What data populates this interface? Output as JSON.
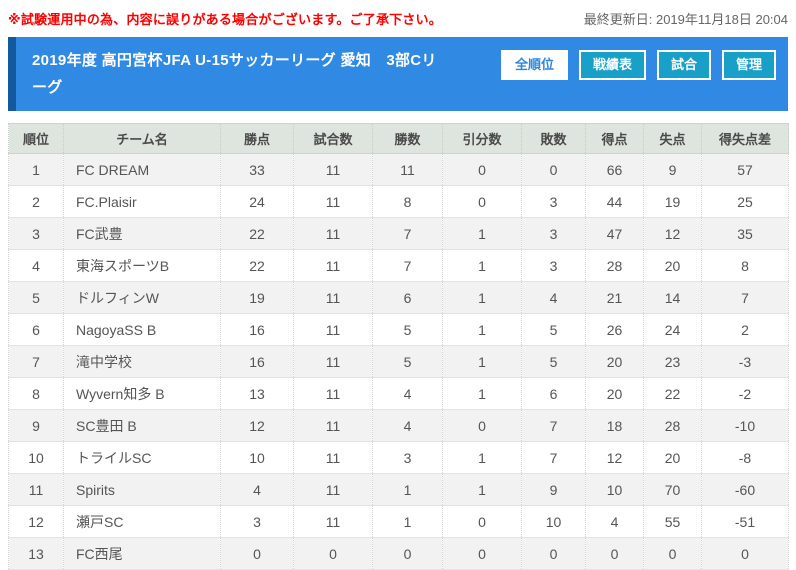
{
  "topbar": {
    "notice": "※試験運用中の為、内容に誤りがある場合がございます。ご了承下さい。",
    "last_updated": "最終更新日: 2019年11月18日 20:04"
  },
  "header": {
    "title": "2019年度 高円宮杯JFA U-15サッカーリーグ 愛知　3部Cリーグ",
    "buttons": [
      {
        "label": "全順位",
        "active": true
      },
      {
        "label": "戦績表",
        "active": false
      },
      {
        "label": "試合",
        "active": false
      },
      {
        "label": "管理",
        "active": false
      }
    ]
  },
  "table": {
    "columns": [
      "順位",
      "チーム名",
      "勝点",
      "試合数",
      "勝数",
      "引分数",
      "敗数",
      "得点",
      "失点",
      "得失点差"
    ],
    "rows": [
      [
        1,
        "FC DREAM",
        33,
        11,
        11,
        0,
        0,
        66,
        9,
        57
      ],
      [
        2,
        "FC.Plaisir",
        24,
        11,
        8,
        0,
        3,
        44,
        19,
        25
      ],
      [
        3,
        "FC武豊",
        22,
        11,
        7,
        1,
        3,
        47,
        12,
        35
      ],
      [
        4,
        "東海スポーツB",
        22,
        11,
        7,
        1,
        3,
        28,
        20,
        8
      ],
      [
        5,
        "ドルフィンW",
        19,
        11,
        6,
        1,
        4,
        21,
        14,
        7
      ],
      [
        6,
        "NagoyaSS B",
        16,
        11,
        5,
        1,
        5,
        26,
        24,
        2
      ],
      [
        7,
        "滝中学校",
        16,
        11,
        5,
        1,
        5,
        20,
        23,
        -3
      ],
      [
        8,
        "Wyvern知多 B",
        13,
        11,
        4,
        1,
        6,
        20,
        22,
        -2
      ],
      [
        9,
        "SC豊田 B",
        12,
        11,
        4,
        0,
        7,
        18,
        28,
        -10
      ],
      [
        10,
        "トライルSC",
        10,
        11,
        3,
        1,
        7,
        12,
        20,
        -8
      ],
      [
        11,
        "Spirits",
        4,
        11,
        1,
        1,
        9,
        10,
        70,
        -60
      ],
      [
        12,
        "瀬戸SC",
        3,
        11,
        1,
        0,
        10,
        4,
        55,
        -51
      ],
      [
        13,
        "FC西尾",
        0,
        0,
        0,
        0,
        0,
        0,
        0,
        0
      ]
    ]
  },
  "colors": {
    "accent_blue": "#3089e2",
    "stripe_blue": "#1459a0",
    "tab_teal": "#18a0c8",
    "notice_red": "#ff0000",
    "table_header_bg": "#dee4de",
    "row_alt_bg": "#f2f2f2"
  }
}
